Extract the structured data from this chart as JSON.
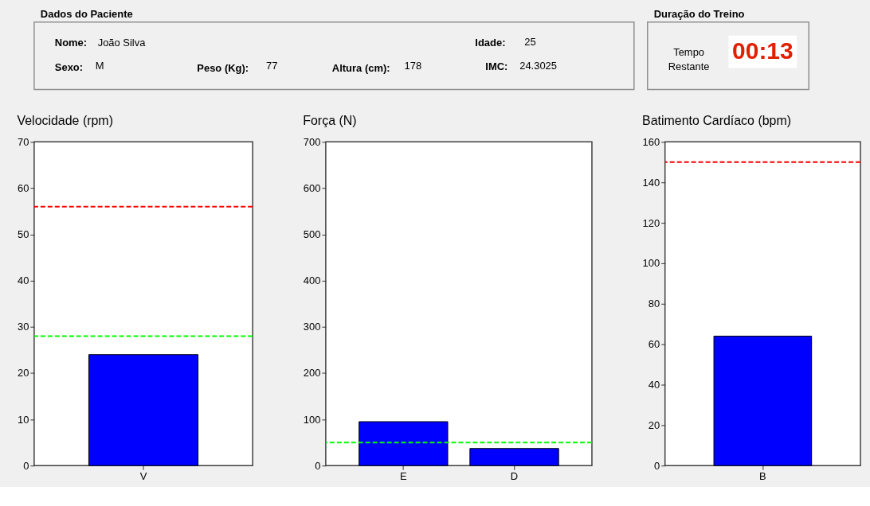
{
  "chart_data": [
    {
      "type": "other",
      "title": "Dados do Paciente",
      "annotations": [
        "Nome:",
        "João Silva",
        "Idade:",
        "25",
        "Sexo:",
        "M",
        "Peso (Kg):",
        "77",
        "Altura (cm):",
        "178",
        "IMC:",
        "24.3025"
      ]
    },
    {
      "type": "other",
      "title": "Duração do Treino",
      "annotations": [
        "Tempo Restante",
        "00:13"
      ]
    },
    {
      "type": "bar",
      "title": "Velocidade (rpm)",
      "categories": [
        "V"
      ],
      "series": [
        {
          "color": "#0000ff",
          "values": [
            24
          ]
        }
      ],
      "ylim": [
        0,
        70
      ],
      "yticks": [
        0,
        10,
        20,
        30,
        40,
        50,
        60,
        70
      ],
      "ref_lines": [
        {
          "axis": "y",
          "value": 56,
          "color": "#ff0000",
          "line_style": "dashed"
        },
        {
          "axis": "y",
          "value": 28,
          "color": "#00ff00",
          "line_style": "dashed"
        }
      ]
    },
    {
      "type": "bar",
      "title": "Força (N)",
      "categories": [
        "E",
        "D"
      ],
      "series": [
        {
          "color": "#0000ff",
          "values": [
            95,
            37
          ]
        }
      ],
      "ylim": [
        0,
        700
      ],
      "yticks": [
        0,
        100,
        200,
        300,
        400,
        500,
        600,
        700
      ],
      "ref_lines": [
        {
          "axis": "y",
          "value": 50,
          "color": "#00ff00",
          "line_style": "dashed"
        }
      ]
    },
    {
      "type": "bar",
      "title": "Batimento Cardíaco (bpm)",
      "categories": [
        "B"
      ],
      "series": [
        {
          "color": "#0000ff",
          "values": [
            64
          ]
        }
      ],
      "ylim": [
        0,
        160
      ],
      "yticks": [
        0,
        20,
        40,
        60,
        80,
        100,
        120,
        140,
        160
      ],
      "ref_lines": [
        {
          "axis": "y",
          "value": 150,
          "color": "#ff0000",
          "line_style": "dashed"
        }
      ]
    }
  ]
}
